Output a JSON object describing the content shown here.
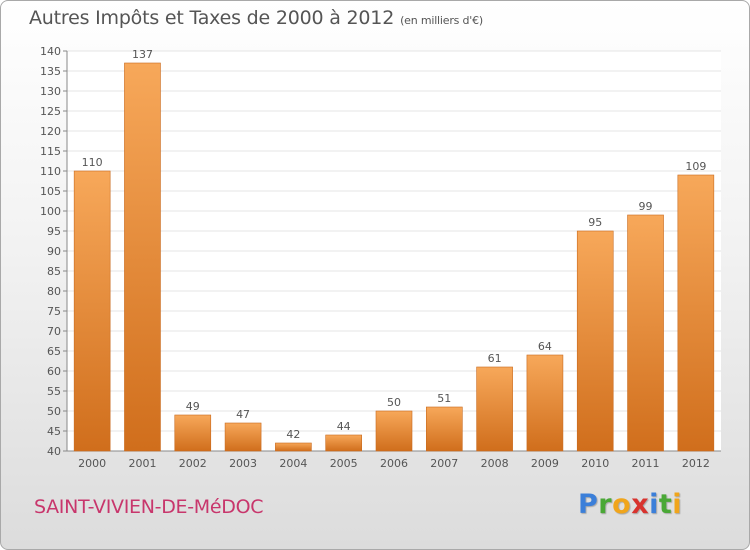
{
  "header": {
    "title": "Autres Impôts et Taxes de 2000 à 2012",
    "subtitle": "(en milliers d'€)"
  },
  "footer": {
    "commune": "SAINT-VIVIEN-DE-MéDOC",
    "logo": {
      "letters": [
        "P",
        "r",
        "o",
        "x",
        "i",
        "t",
        "i"
      ],
      "colors": [
        "#3b7fd9",
        "#4aa836",
        "#f0a51c",
        "#d8332e",
        "#3b7fd9",
        "#4aa836",
        "#f0a51c"
      ]
    }
  },
  "colors": {
    "bar_top": "#f7a85a",
    "bar_bottom": "#d06e1c",
    "grid": "#e4e4e4",
    "text": "#555555"
  },
  "chart_data": {
    "type": "bar",
    "title": "Autres Impôts et Taxes de 2000 à 2012",
    "subtitle": "(en milliers d'€)",
    "categories": [
      "2000",
      "2001",
      "2002",
      "2003",
      "2004",
      "2005",
      "2006",
      "2007",
      "2008",
      "2009",
      "2010",
      "2011",
      "2012"
    ],
    "values": [
      110,
      137,
      49,
      47,
      42,
      44,
      50,
      51,
      61,
      64,
      95,
      99,
      109
    ],
    "ylim": [
      40,
      140
    ],
    "ytick_step": 5,
    "grid": true,
    "data_labels": true
  }
}
